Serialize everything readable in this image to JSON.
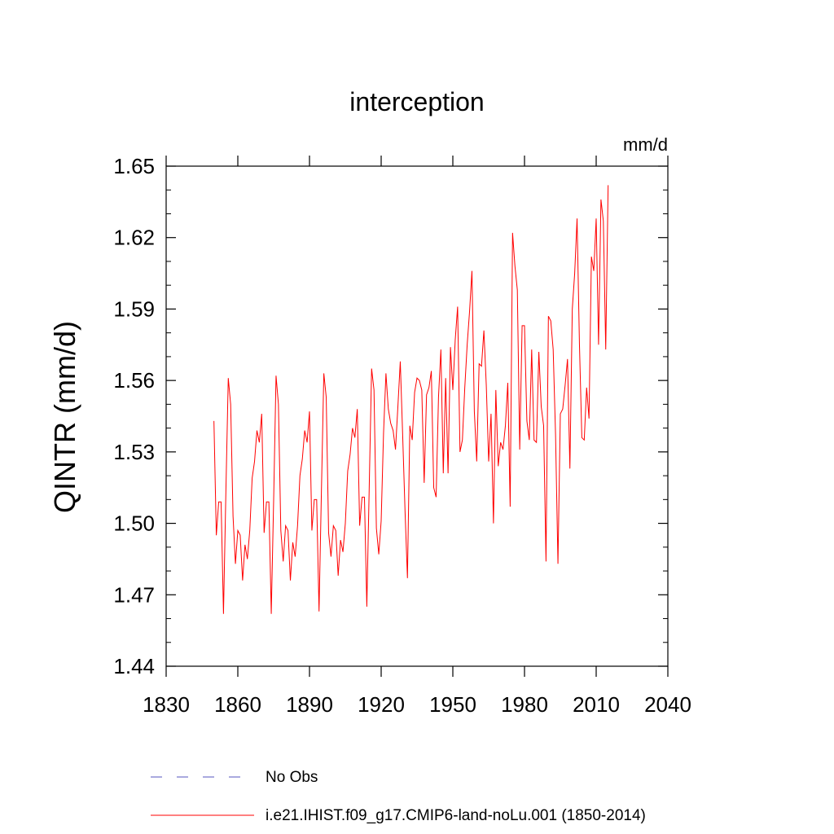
{
  "chart_data": {
    "type": "line",
    "title": "interception",
    "units": "mm/d",
    "ylabel": "QINTR  (mm/d)",
    "xlabel": "",
    "xlim": [
      1830,
      2040
    ],
    "ylim": [
      1.44,
      1.65
    ],
    "xticks": [
      1830,
      1860,
      1890,
      1920,
      1950,
      1980,
      2010,
      2040
    ],
    "yticks": [
      1.44,
      1.47,
      1.5,
      1.53,
      1.56,
      1.59,
      1.62,
      1.65
    ],
    "ytick_labels": [
      "1.44",
      "1.47",
      "1.50",
      "1.53",
      "1.56",
      "1.59",
      "1.62",
      "1.65"
    ],
    "grid": false,
    "legend_position": "bottom",
    "legend": [
      {
        "label": "No Obs",
        "color": "#7777cc",
        "style": "dashed"
      },
      {
        "label": "i.e21.IHIST.f09_g17.CMIP6-land-noLu.001 (1850-2014)",
        "color": "#ff0000",
        "style": "solid"
      }
    ],
    "series": [
      {
        "name": "i.e21.IHIST.f09_g17.CMIP6-land-noLu.001 (1850-2014)",
        "color": "#ff0000",
        "x_start": 1850,
        "x_step": 1,
        "values": [
          1.543,
          1.495,
          1.509,
          1.509,
          1.462,
          1.513,
          1.561,
          1.55,
          1.503,
          1.483,
          1.497,
          1.495,
          1.476,
          1.491,
          1.485,
          1.497,
          1.519,
          1.526,
          1.539,
          1.534,
          1.546,
          1.496,
          1.509,
          1.509,
          1.462,
          1.51,
          1.562,
          1.55,
          1.497,
          1.484,
          1.499,
          1.497,
          1.476,
          1.492,
          1.486,
          1.499,
          1.52,
          1.527,
          1.539,
          1.534,
          1.547,
          1.497,
          1.51,
          1.51,
          1.463,
          1.514,
          1.563,
          1.553,
          1.496,
          1.486,
          1.499,
          1.497,
          1.478,
          1.493,
          1.488,
          1.5,
          1.522,
          1.529,
          1.54,
          1.536,
          1.548,
          1.499,
          1.511,
          1.511,
          1.465,
          1.515,
          1.565,
          1.556,
          1.498,
          1.487,
          1.501,
          1.538,
          1.563,
          1.548,
          1.542,
          1.539,
          1.531,
          1.549,
          1.568,
          1.537,
          1.505,
          1.477,
          1.541,
          1.535,
          1.555,
          1.561,
          1.56,
          1.556,
          1.517,
          1.554,
          1.557,
          1.564,
          1.515,
          1.511,
          1.553,
          1.573,
          1.521,
          1.561,
          1.521,
          1.574,
          1.556,
          1.577,
          1.591,
          1.53,
          1.535,
          1.557,
          1.575,
          1.589,
          1.606,
          1.547,
          1.526,
          1.567,
          1.566,
          1.581,
          1.558,
          1.526,
          1.546,
          1.5,
          1.556,
          1.524,
          1.534,
          1.531,
          1.541,
          1.559,
          1.507,
          1.622,
          1.608,
          1.598,
          1.531,
          1.583,
          1.583,
          1.543,
          1.535,
          1.573,
          1.535,
          1.534,
          1.572,
          1.549,
          1.541,
          1.484,
          1.587,
          1.585,
          1.573,
          1.537,
          1.483,
          1.546,
          1.548,
          1.558,
          1.569,
          1.523,
          1.59,
          1.605,
          1.628,
          1.575,
          1.536,
          1.535,
          1.557,
          1.544,
          1.612,
          1.606,
          1.628,
          1.575,
          1.636,
          1.627,
          1.573,
          1.642
        ]
      }
    ]
  }
}
